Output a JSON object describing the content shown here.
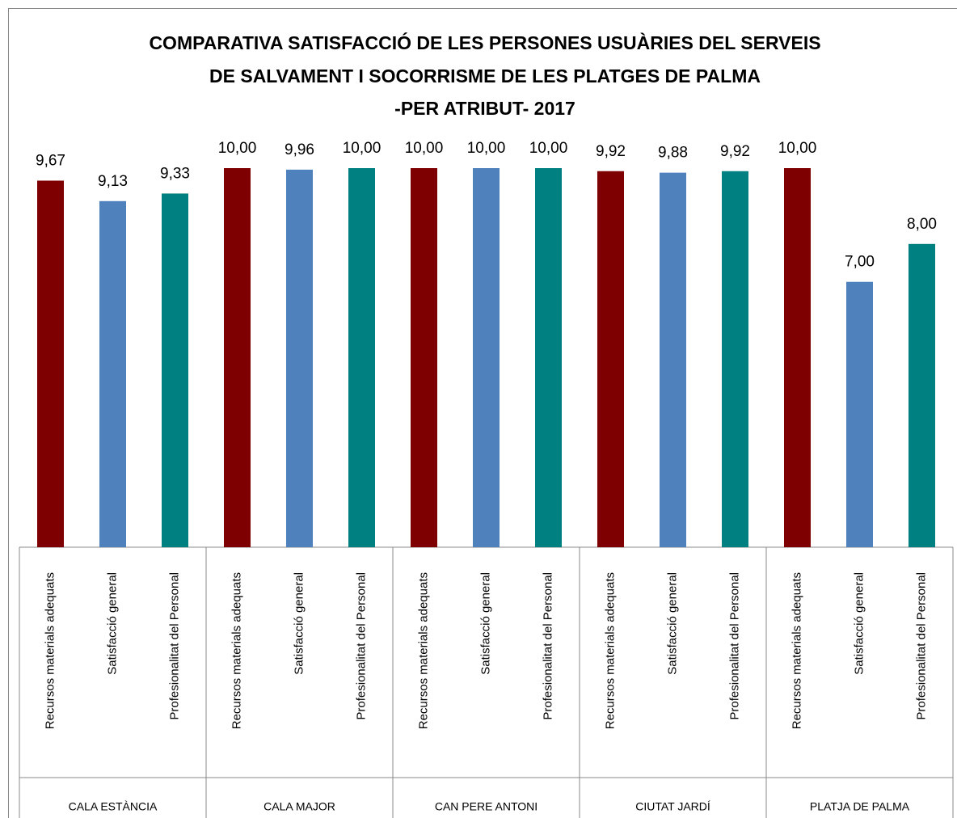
{
  "chart_data": {
    "type": "bar",
    "title": [
      "COMPARATIVA SATISFACCIÓ DE LES PERSONES USUÀRIES DEL SERVEIS",
      "DE SALVAMENT I SOCORRISME DE LES PLATGES DE PALMA",
      "-PER ATRIBUT- 2017"
    ],
    "groups": [
      "CALA ESTÀNCIA",
      "CALA MAJOR",
      "CAN PERE ANTONI",
      "CIUTAT JARDÍ",
      "PLATJA DE PALMA"
    ],
    "categories": [
      "Recursos materials adequats",
      "Satisfacció general",
      "Profesionalitat del Personal",
      "Recursos materials adequats",
      "Satisfacció general",
      "Profesionalitat del Personal",
      "Recursos materials adequats",
      "Satisfacció general",
      "Profesionalitat del Personal",
      "Recursos materials adequats",
      "Satisfacció general",
      "Profesionalitat del Personal",
      "Recursos materials adequats",
      "Satisfacció general",
      "Profesionalitat del Personal"
    ],
    "values": [
      9.67,
      9.13,
      9.33,
      10,
      9.96,
      10,
      10,
      10,
      10,
      9.92,
      9.88,
      9.92,
      10,
      7,
      8
    ],
    "value_labels": [
      "9,67",
      "9,13",
      "9,33",
      "10,00",
      "9,96",
      "10,00",
      "10,00",
      "10,00",
      "10,00",
      "9,92",
      "9,88",
      "9,92",
      "10,00",
      "7,00",
      "8,00"
    ],
    "colors": [
      "#7f0000",
      "#4f81bd",
      "#008080",
      "#7f0000",
      "#4f81bd",
      "#008080",
      "#7f0000",
      "#4f81bd",
      "#008080",
      "#7f0000",
      "#4f81bd",
      "#008080",
      "#7f0000",
      "#4f81bd",
      "#008080"
    ],
    "ylim": [
      0,
      10
    ]
  }
}
